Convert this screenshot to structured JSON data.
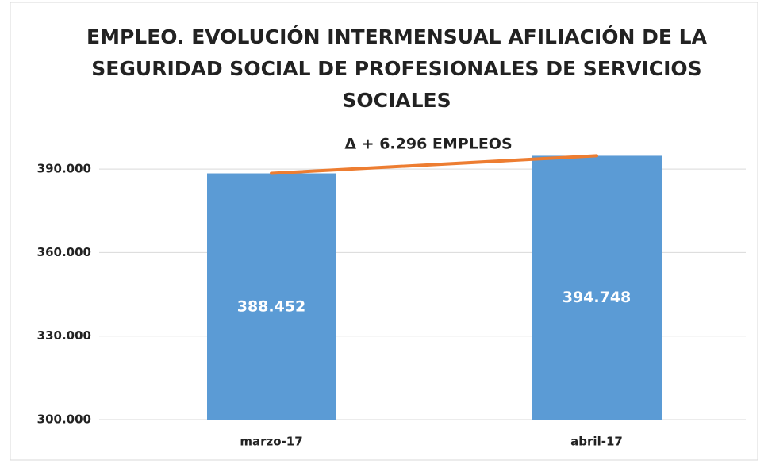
{
  "chart_data": {
    "type": "bar",
    "title": [
      "EMPLEO. EVOLUCIÓN INTERMENSUAL AFILIACIÓN DE LA",
      "SEGURIDAD SOCIAL DE PROFESIONALES DE SERVICIOS",
      "SOCIALES"
    ],
    "annotation": "Δ + 6.296 EMPLEOS",
    "categories": [
      "marzo-17",
      "abril-17"
    ],
    "values": [
      388452,
      394748
    ],
    "value_labels": [
      "388.452",
      "394.748"
    ],
    "color": "#5b9bd5",
    "line_color": "#ed7d31",
    "ylim": [
      300000,
      400000
    ],
    "yticks": [
      {
        "value": 300000,
        "label": "300.000"
      },
      {
        "value": 330000,
        "label": "330.000"
      },
      {
        "value": 360000,
        "label": "360.000"
      },
      {
        "value": 390000,
        "label": "390.000"
      }
    ],
    "grid": true
  }
}
